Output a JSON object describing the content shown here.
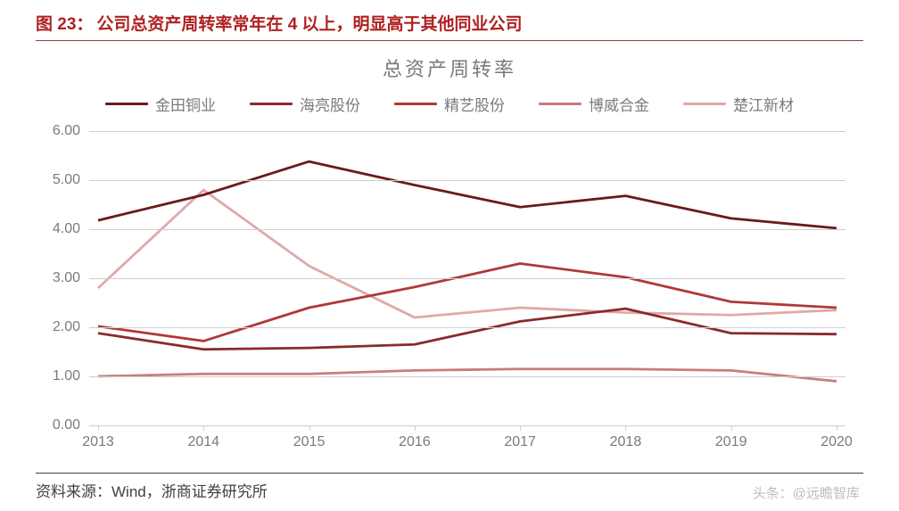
{
  "figure": {
    "label": "图 23：",
    "title": "公司总资产周转率常年在 4 以上，明显高于其他同业公司"
  },
  "chart": {
    "type": "line",
    "title": "总资产周转率",
    "title_fontsize": 22,
    "title_color": "#7a7a7a",
    "legend_fontsize": 17,
    "legend_color": "#7a7a7a",
    "background_color": "#ffffff",
    "grid_color": "#cfcfcf",
    "line_width": 2.8,
    "axis_label_fontsize": 16,
    "axis_label_color": "#7a7a7a",
    "categories": [
      "2013",
      "2014",
      "2015",
      "2016",
      "2017",
      "2018",
      "2019",
      "2020"
    ],
    "ylim": [
      0,
      6
    ],
    "ytick_step": 1,
    "ytick_labels": [
      "0.00",
      "1.00",
      "2.00",
      "3.00",
      "4.00",
      "5.00",
      "6.00"
    ],
    "series": [
      {
        "name": "金田铜业",
        "color": "#6b1a1a",
        "values": [
          4.18,
          4.7,
          5.38,
          4.9,
          4.45,
          4.68,
          4.22,
          4.02
        ]
      },
      {
        "name": "海亮股份",
        "color": "#8b2a2a",
        "values": [
          1.88,
          1.55,
          1.58,
          1.65,
          2.12,
          2.38,
          1.88,
          1.86
        ]
      },
      {
        "name": "精艺股份",
        "color": "#b03838",
        "values": [
          2.02,
          1.72,
          2.4,
          2.82,
          3.3,
          3.02,
          2.52,
          2.4
        ]
      },
      {
        "name": "博威合金",
        "color": "#c97c7c",
        "values": [
          1.0,
          1.05,
          1.05,
          1.12,
          1.15,
          1.15,
          1.12,
          0.9
        ]
      },
      {
        "name": "楚江新材",
        "color": "#e1a8a8",
        "values": [
          2.8,
          4.8,
          3.25,
          2.2,
          2.4,
          2.3,
          2.25,
          2.35
        ]
      }
    ]
  },
  "source": {
    "label": "资料来源：",
    "text": "Wind，浙商证券研究所"
  },
  "watermark": "头条：@远瞻智库"
}
